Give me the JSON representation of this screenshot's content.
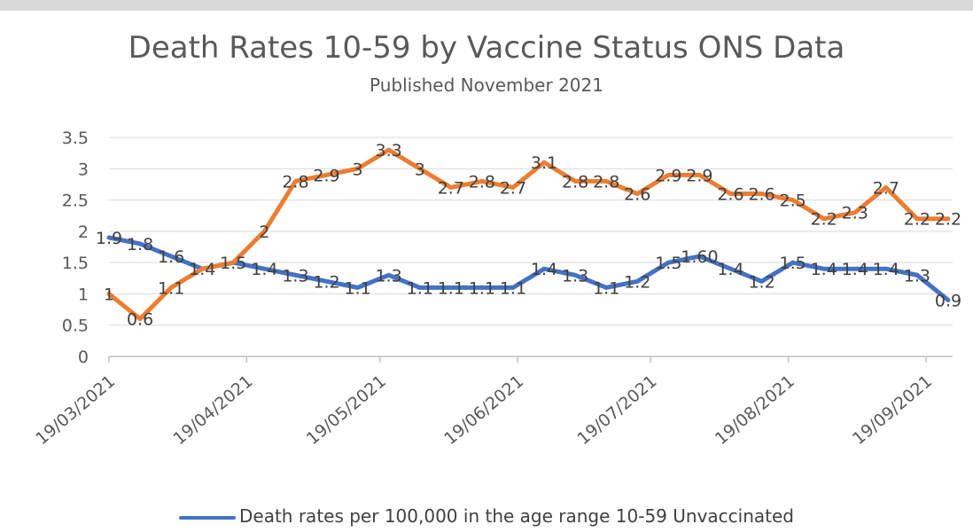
{
  "chart_data": {
    "type": "line",
    "title": "Death Rates 10-59  by Vaccine Status ONS Data",
    "subtitle": "Published November 2021",
    "ylim": [
      0,
      3.5
    ],
    "yticks": [
      "0",
      "0.5",
      "1",
      "1.5",
      "2",
      "2.5",
      "3",
      "3.5"
    ],
    "xticks": [
      "19/03/2021",
      "19/04/2021",
      "19/05/2021",
      "19/06/2021",
      "19/07/2021",
      "19/08/2021",
      "19/09/2021"
    ],
    "x_start": "19/03/2021",
    "x_end": "25/09/2021",
    "grid": true,
    "legend_position": "bottom",
    "series": [
      {
        "name": "Death rates per 100,000 in the age range 10-59 Unvaccinated",
        "color": "#4472c4",
        "x": [
          "19/03/2021",
          "26/03/2021",
          "02/04/2021",
          "09/04/2021",
          "16/04/2021",
          "23/04/2021",
          "30/04/2021",
          "07/05/2021",
          "14/05/2021",
          "21/05/2021",
          "28/05/2021",
          "04/06/2021",
          "11/06/2021",
          "18/06/2021",
          "25/06/2021",
          "02/07/2021",
          "09/07/2021",
          "16/07/2021",
          "23/07/2021",
          "30/07/2021",
          "06/08/2021",
          "13/08/2021",
          "20/08/2021",
          "27/08/2021",
          "03/09/2021",
          "10/09/2021",
          "17/09/2021",
          "24/09/2021"
        ],
        "values": [
          1.9,
          1.8,
          1.6,
          1.4,
          1.5,
          1.4,
          1.3,
          1.2,
          1.1,
          1.3,
          1.1,
          1.1,
          1.1,
          1.1,
          1.4,
          1.3,
          1.1,
          1.2,
          1.5,
          1.6,
          1.4,
          1.2,
          1.5,
          1.4,
          1.4,
          1.4,
          1.3,
          0.9
        ],
        "labels": [
          "1.9",
          "1.8",
          "1.6",
          "1.4",
          "1.5",
          "1.4",
          "1.3",
          "1.2",
          "1.1",
          "1.3",
          "1.1",
          "1.1",
          "1.1",
          "1.1",
          "1.4",
          "1.3",
          "1.1",
          "1.2",
          "1.5",
          "1.60",
          "1.4",
          "1.2",
          "1.5",
          "1.4",
          "1.4",
          "1.4",
          "1.3",
          "0.9"
        ]
      },
      {
        "color": "#ed7d31",
        "x": [
          "19/03/2021",
          "26/03/2021",
          "02/04/2021",
          "09/04/2021",
          "16/04/2021",
          "23/04/2021",
          "30/04/2021",
          "07/05/2021",
          "14/05/2021",
          "21/05/2021",
          "28/05/2021",
          "04/06/2021",
          "11/06/2021",
          "18/06/2021",
          "25/06/2021",
          "02/07/2021",
          "09/07/2021",
          "16/07/2021",
          "23/07/2021",
          "30/07/2021",
          "06/08/2021",
          "13/08/2021",
          "20/08/2021",
          "27/08/2021",
          "03/09/2021",
          "10/09/2021",
          "17/09/2021",
          "24/09/2021"
        ],
        "values": [
          1,
          0.6,
          1.1,
          1.4,
          1.5,
          2,
          2.8,
          2.9,
          3,
          3.3,
          3,
          2.7,
          2.8,
          2.7,
          3.1,
          2.8,
          2.8,
          2.6,
          2.9,
          2.9,
          2.6,
          2.6,
          2.5,
          2.2,
          2.3,
          2.7,
          2.2,
          2.2
        ],
        "labels": [
          "1",
          "0.6",
          "1.1",
          "",
          "",
          "2",
          "2.8",
          "2.9",
          "3",
          "3.3",
          "3",
          "2.7",
          "2.8",
          "2.7",
          "3.1",
          "2.8",
          "2.8",
          "2.6",
          "2.9",
          "2.9",
          "2.6",
          "2.6",
          "2.5",
          "2.2",
          "2.3",
          "2.7",
          "2.2",
          "2.2"
        ]
      }
    ]
  }
}
